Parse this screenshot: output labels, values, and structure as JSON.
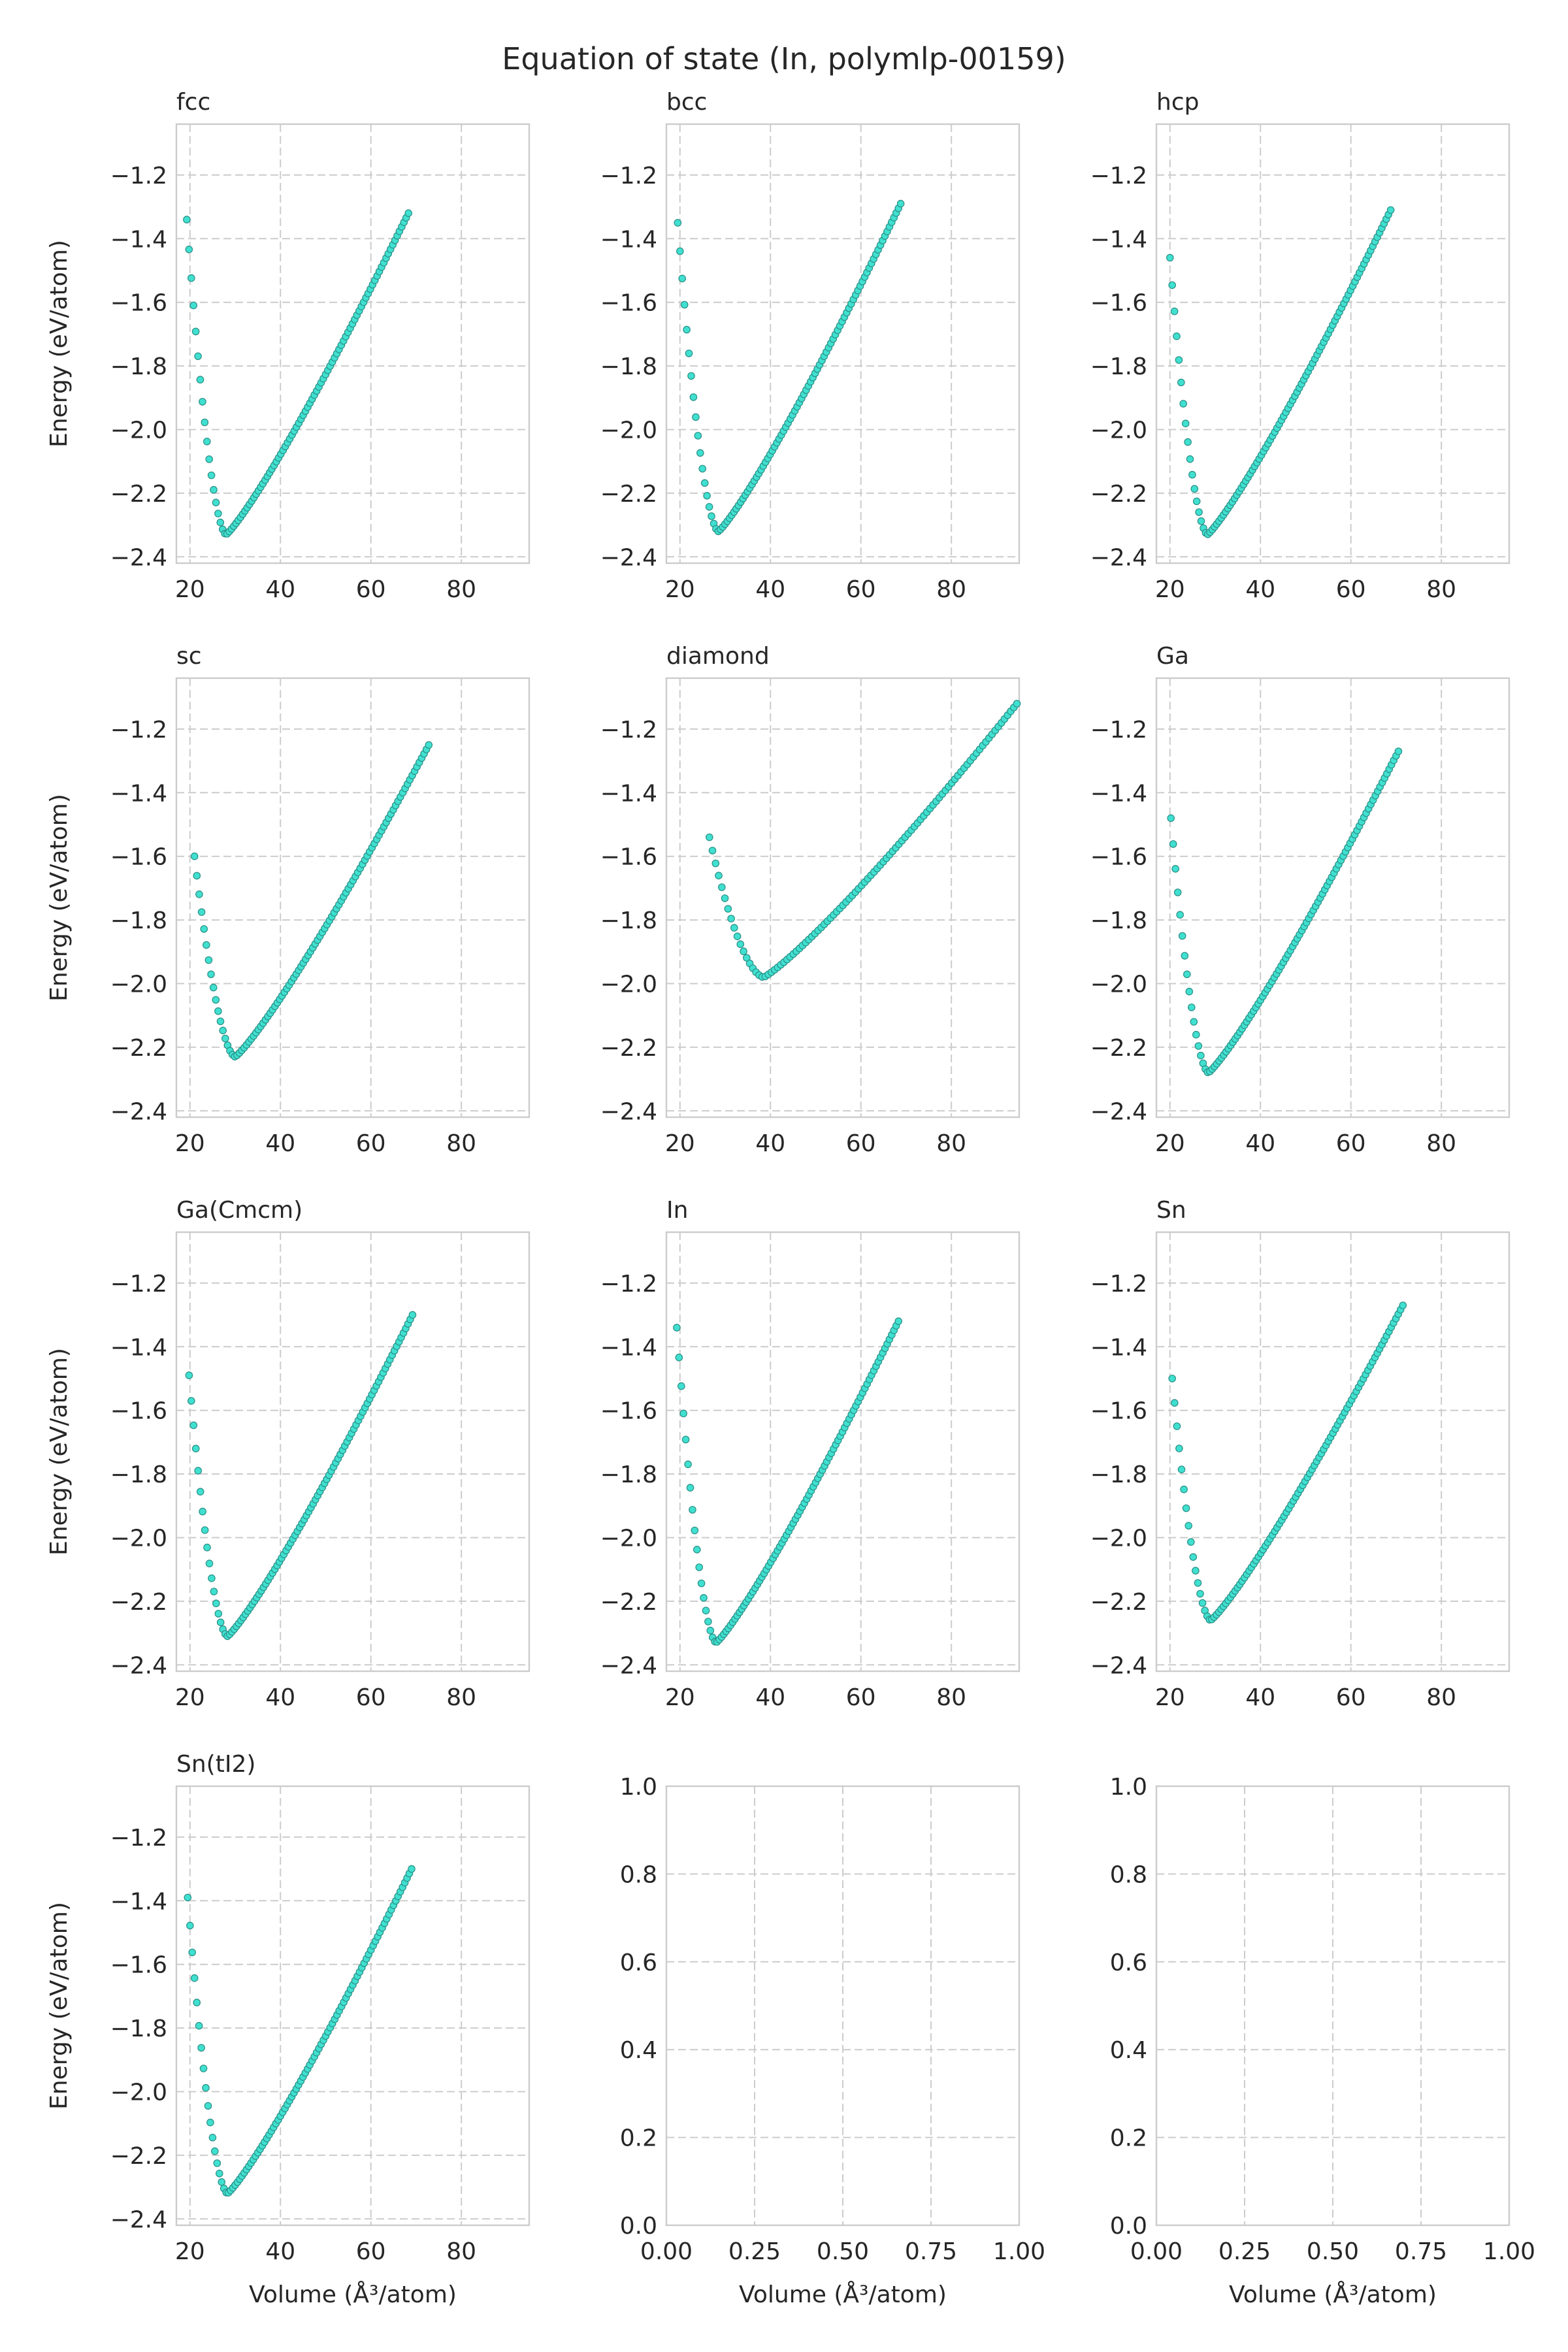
{
  "figure_title": "Equation of state (In, polymlp-00159)",
  "chart_data": [
    {
      "type": "scatter",
      "title": "fcc",
      "xlabel": "",
      "ylabel": "Energy (eV/atom)",
      "xlim": [
        17,
        95
      ],
      "ylim": [
        -2.42,
        -1.04
      ],
      "xticks": [
        20,
        40,
        60,
        80
      ],
      "xtick_labels": [
        "20",
        "40",
        "60",
        "80"
      ],
      "yticks": [
        -2.4,
        -2.2,
        -2.0,
        -1.8,
        -1.6,
        -1.4,
        -1.2
      ],
      "ytick_labels": [
        "−2.4",
        "−2.2",
        "−2.0",
        "−1.8",
        "−1.6",
        "−1.4",
        "−1.2"
      ],
      "grid": true,
      "color": "#40e0d0",
      "curve": {
        "v_start": 19.3,
        "v_end": 68.3,
        "v_min": 28.0,
        "e_min": -2.33,
        "e_start": -1.34,
        "e_end": -1.32,
        "n_points": 100
      }
    },
    {
      "type": "scatter",
      "title": "bcc",
      "xlabel": "",
      "ylabel": "",
      "xlim": [
        17,
        95
      ],
      "ylim": [
        -2.42,
        -1.04
      ],
      "xticks": [
        20,
        40,
        60,
        80
      ],
      "xtick_labels": [
        "20",
        "40",
        "60",
        "80"
      ],
      "yticks": [
        -2.4,
        -2.2,
        -2.0,
        -1.8,
        -1.6,
        -1.4,
        -1.2
      ],
      "ytick_labels": [
        "−2.4",
        "−2.2",
        "−2.0",
        "−1.8",
        "−1.6",
        "−1.4",
        "−1.2"
      ],
      "grid": true,
      "color": "#40e0d0",
      "curve": {
        "v_start": 19.5,
        "v_end": 68.8,
        "v_min": 28.5,
        "e_min": -2.32,
        "e_start": -1.35,
        "e_end": -1.29,
        "n_points": 100
      }
    },
    {
      "type": "scatter",
      "title": "hcp",
      "xlabel": "",
      "ylabel": "",
      "xlim": [
        17,
        95
      ],
      "ylim": [
        -2.42,
        -1.04
      ],
      "xticks": [
        20,
        40,
        60,
        80
      ],
      "xtick_labels": [
        "20",
        "40",
        "60",
        "80"
      ],
      "yticks": [
        -2.4,
        -2.2,
        -2.0,
        -1.8,
        -1.6,
        -1.4,
        -1.2
      ],
      "ytick_labels": [
        "−2.4",
        "−2.2",
        "−2.0",
        "−1.8",
        "−1.6",
        "−1.4",
        "−1.2"
      ],
      "grid": true,
      "color": "#40e0d0",
      "curve": {
        "v_start": 20.0,
        "v_end": 68.8,
        "v_min": 28.3,
        "e_min": -2.33,
        "e_start": -1.46,
        "e_end": -1.31,
        "n_points": 100
      }
    },
    {
      "type": "scatter",
      "title": "sc",
      "xlabel": "",
      "ylabel": "Energy (eV/atom)",
      "xlim": [
        17,
        95
      ],
      "ylim": [
        -2.42,
        -1.04
      ],
      "xticks": [
        20,
        40,
        60,
        80
      ],
      "xtick_labels": [
        "20",
        "40",
        "60",
        "80"
      ],
      "yticks": [
        -2.4,
        -2.2,
        -2.0,
        -1.8,
        -1.6,
        -1.4,
        -1.2
      ],
      "ytick_labels": [
        "−2.4",
        "−2.2",
        "−2.0",
        "−1.8",
        "−1.6",
        "−1.4",
        "−1.2"
      ],
      "grid": true,
      "color": "#40e0d0",
      "curve": {
        "v_start": 21.0,
        "v_end": 72.8,
        "v_min": 30.0,
        "e_min": -2.23,
        "e_start": -1.6,
        "e_end": -1.25,
        "n_points": 100
      }
    },
    {
      "type": "scatter",
      "title": "diamond",
      "xlabel": "",
      "ylabel": "",
      "xlim": [
        17,
        95
      ],
      "ylim": [
        -2.42,
        -1.04
      ],
      "xticks": [
        20,
        40,
        60,
        80
      ],
      "xtick_labels": [
        "20",
        "40",
        "60",
        "80"
      ],
      "yticks": [
        -2.4,
        -2.2,
        -2.0,
        -1.8,
        -1.6,
        -1.4,
        -1.2
      ],
      "ytick_labels": [
        "−2.4",
        "−2.2",
        "−2.0",
        "−1.8",
        "−1.6",
        "−1.4",
        "−1.2"
      ],
      "grid": true,
      "color": "#40e0d0",
      "curve": {
        "v_start": 26.5,
        "v_end": 94.5,
        "v_min": 38.5,
        "e_min": -1.98,
        "e_start": -1.54,
        "e_end": -1.12,
        "n_points": 100
      }
    },
    {
      "type": "scatter",
      "title": "Ga",
      "xlabel": "",
      "ylabel": "",
      "xlim": [
        17,
        95
      ],
      "ylim": [
        -2.42,
        -1.04
      ],
      "xticks": [
        20,
        40,
        60,
        80
      ],
      "xtick_labels": [
        "20",
        "40",
        "60",
        "80"
      ],
      "yticks": [
        -2.4,
        -2.2,
        -2.0,
        -1.8,
        -1.6,
        -1.4,
        -1.2
      ],
      "ytick_labels": [
        "−2.4",
        "−2.2",
        "−2.0",
        "−1.8",
        "−1.6",
        "−1.4",
        "−1.2"
      ],
      "grid": true,
      "color": "#40e0d0",
      "curve": {
        "v_start": 20.2,
        "v_end": 70.5,
        "v_min": 28.5,
        "e_min": -2.28,
        "e_start": -1.48,
        "e_end": -1.27,
        "n_points": 100
      }
    },
    {
      "type": "scatter",
      "title": "Ga(Cmcm)",
      "xlabel": "",
      "ylabel": "Energy (eV/atom)",
      "xlim": [
        17,
        95
      ],
      "ylim": [
        -2.42,
        -1.04
      ],
      "xticks": [
        20,
        40,
        60,
        80
      ],
      "xtick_labels": [
        "20",
        "40",
        "60",
        "80"
      ],
      "yticks": [
        -2.4,
        -2.2,
        -2.0,
        -1.8,
        -1.6,
        -1.4,
        -1.2
      ],
      "ytick_labels": [
        "−2.4",
        "−2.2",
        "−2.0",
        "−1.8",
        "−1.6",
        "−1.4",
        "−1.2"
      ],
      "grid": true,
      "color": "#40e0d0",
      "curve": {
        "v_start": 19.8,
        "v_end": 69.2,
        "v_min": 28.3,
        "e_min": -2.31,
        "e_start": -1.49,
        "e_end": -1.3,
        "n_points": 100
      }
    },
    {
      "type": "scatter",
      "title": "In",
      "xlabel": "",
      "ylabel": "",
      "xlim": [
        17,
        95
      ],
      "ylim": [
        -2.42,
        -1.04
      ],
      "xticks": [
        20,
        40,
        60,
        80
      ],
      "xtick_labels": [
        "20",
        "40",
        "60",
        "80"
      ],
      "yticks": [
        -2.4,
        -2.2,
        -2.0,
        -1.8,
        -1.6,
        -1.4,
        -1.2
      ],
      "ytick_labels": [
        "−2.4",
        "−2.2",
        "−2.0",
        "−1.8",
        "−1.6",
        "−1.4",
        "−1.2"
      ],
      "grid": true,
      "color": "#40e0d0",
      "curve": {
        "v_start": 19.3,
        "v_end": 68.3,
        "v_min": 28.0,
        "e_min": -2.33,
        "e_start": -1.34,
        "e_end": -1.32,
        "n_points": 100
      }
    },
    {
      "type": "scatter",
      "title": "Sn",
      "xlabel": "",
      "ylabel": "",
      "xlim": [
        17,
        95
      ],
      "ylim": [
        -2.42,
        -1.04
      ],
      "xticks": [
        20,
        40,
        60,
        80
      ],
      "xtick_labels": [
        "20",
        "40",
        "60",
        "80"
      ],
      "yticks": [
        -2.4,
        -2.2,
        -2.0,
        -1.8,
        -1.6,
        -1.4,
        -1.2
      ],
      "ytick_labels": [
        "−2.4",
        "−2.2",
        "−2.0",
        "−1.8",
        "−1.6",
        "−1.4",
        "−1.2"
      ],
      "grid": true,
      "color": "#40e0d0",
      "curve": {
        "v_start": 20.5,
        "v_end": 71.5,
        "v_min": 29.0,
        "e_min": -2.26,
        "e_start": -1.5,
        "e_end": -1.27,
        "n_points": 100
      }
    },
    {
      "type": "scatter",
      "title": "Sn(tI2)",
      "xlabel": "Volume (Å³/atom)",
      "ylabel": "Energy (eV/atom)",
      "xlim": [
        17,
        95
      ],
      "ylim": [
        -2.42,
        -1.04
      ],
      "xticks": [
        20,
        40,
        60,
        80
      ],
      "xtick_labels": [
        "20",
        "40",
        "60",
        "80"
      ],
      "yticks": [
        -2.4,
        -2.2,
        -2.0,
        -1.8,
        -1.6,
        -1.4,
        -1.2
      ],
      "ytick_labels": [
        "−2.4",
        "−2.2",
        "−2.0",
        "−1.8",
        "−1.6",
        "−1.4",
        "−1.2"
      ],
      "grid": true,
      "color": "#40e0d0",
      "curve": {
        "v_start": 19.5,
        "v_end": 69.0,
        "v_min": 28.3,
        "e_min": -2.32,
        "e_start": -1.39,
        "e_end": -1.3,
        "n_points": 100
      }
    },
    {
      "type": "scatter",
      "title": "",
      "xlabel": "Volume (Å³/atom)",
      "ylabel": "",
      "xlim": [
        0,
        1
      ],
      "ylim": [
        0,
        1
      ],
      "xticks": [
        0,
        0.25,
        0.5,
        0.75,
        1.0
      ],
      "xtick_labels": [
        "0.00",
        "0.25",
        "0.50",
        "0.75",
        "1.00"
      ],
      "yticks": [
        0,
        0.2,
        0.4,
        0.6,
        0.8,
        1.0
      ],
      "ytick_labels": [
        "0.0",
        "0.2",
        "0.4",
        "0.6",
        "0.8",
        "1.0"
      ],
      "grid": true,
      "empty": true
    },
    {
      "type": "scatter",
      "title": "",
      "xlabel": "Volume (Å³/atom)",
      "ylabel": "",
      "xlim": [
        0,
        1
      ],
      "ylim": [
        0,
        1
      ],
      "xticks": [
        0,
        0.25,
        0.5,
        0.75,
        1.0
      ],
      "xtick_labels": [
        "0.00",
        "0.25",
        "0.50",
        "0.75",
        "1.00"
      ],
      "yticks": [
        0,
        0.2,
        0.4,
        0.6,
        0.8,
        1.0
      ],
      "ytick_labels": [
        "0.0",
        "0.2",
        "0.4",
        "0.6",
        "0.8",
        "1.0"
      ],
      "grid": true,
      "empty": true
    }
  ]
}
